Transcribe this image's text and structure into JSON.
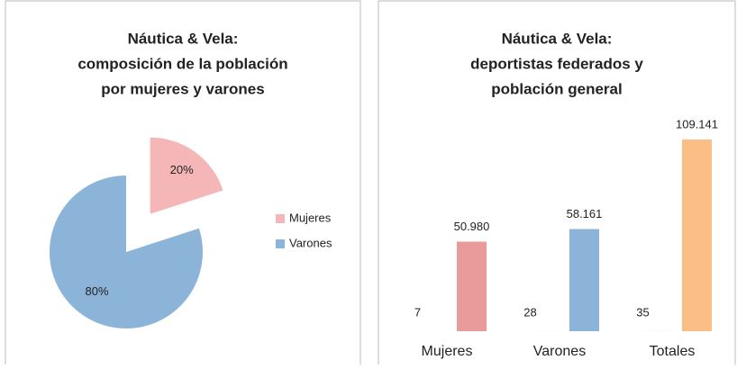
{
  "chart_data": [
    {
      "type": "pie",
      "title": [
        "Náutica & Vela:",
        "composición de la población",
        "por mujeres y varones"
      ],
      "categories": [
        "Mujeres",
        "Varones"
      ],
      "values": [
        20,
        80
      ],
      "value_labels": [
        "20%",
        "80%"
      ],
      "colors": [
        "#f4b6b6",
        "#8cb4d9"
      ],
      "legend": "right"
    },
    {
      "type": "bar",
      "title": [
        "Náutica & Vela:",
        "deportistas federados y",
        "población general"
      ],
      "categories": [
        "Mujeres",
        "Varones",
        "Totales"
      ],
      "series": [
        {
          "color": "#e6a0a0",
          "values": [
            7,
            28,
            35
          ]
        },
        {
          "colors": [
            "#e99a9a",
            "#8cb4d9",
            "#fbbf85"
          ],
          "values": [
            50980,
            58161,
            109141
          ],
          "value_labels": [
            "50.980",
            "58.161",
            "109.141"
          ]
        }
      ]
    }
  ]
}
